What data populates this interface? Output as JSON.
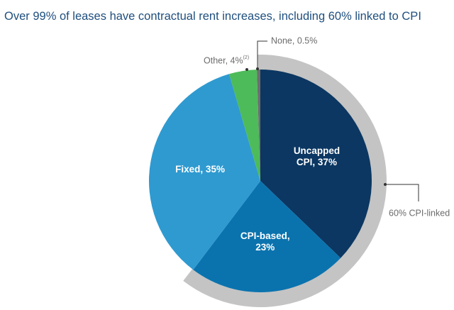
{
  "chart_data": {
    "type": "pie",
    "title": "Over 99% of leases have contractual rent increases, including 60% linked to CPI",
    "values": [
      37,
      23,
      35,
      4,
      0.5
    ],
    "value_labels": [
      "Uncapped\nCPI, 37%",
      "CPI-based,\n23%",
      "Fixed, 35%",
      "Other, 4%",
      "None, 0.5%"
    ],
    "footnotes": [
      null,
      null,
      null,
      "(2)",
      null
    ],
    "colors": [
      "#0b3762",
      "#0a73ae",
      "#2f9ad0",
      "#4dbb59",
      "#6d6d6d"
    ],
    "annotation": "60% CPI-linked"
  }
}
